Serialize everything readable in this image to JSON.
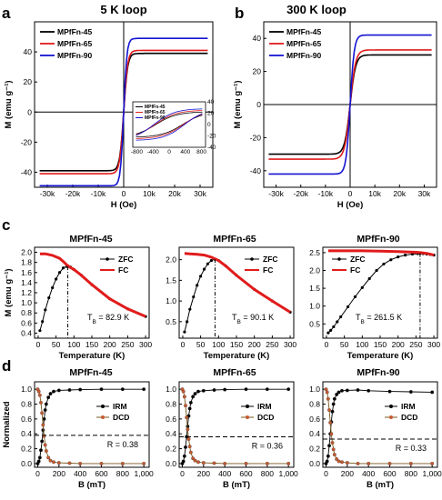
{
  "panel_letters": [
    "a",
    "b",
    "c",
    "d"
  ],
  "chart_data": [
    {
      "id": "a",
      "type": "line",
      "title": "5 K loop",
      "xlabel": "H (Oe)",
      "ylabel": "M (emu g⁻¹)",
      "xlim": [
        -35000,
        35000
      ],
      "ylim": [
        -50,
        60
      ],
      "xticks": [
        -30000,
        -20000,
        -10000,
        0,
        10000,
        20000,
        30000
      ],
      "xtick_labels": [
        "-30k",
        "-20k",
        "-10k",
        "0",
        "10k",
        "20k",
        "30k"
      ],
      "yticks": [
        -40,
        -20,
        0,
        20,
        40
      ],
      "ytick_labels": [
        "-40",
        "-20",
        "0",
        "20",
        "40"
      ],
      "legend_position": "top-left",
      "series": [
        {
          "name": "MPfFn-45",
          "color": "#000000",
          "Ms": 39,
          "k": 1600
        },
        {
          "name": "MPfFn-65",
          "color": "#e11b1b",
          "Ms": 41,
          "k": 1600
        },
        {
          "name": "MPfFn-90",
          "color": "#1414d2",
          "Ms": 49,
          "k": 1300
        }
      ],
      "inset": {
        "xlim": [
          -900,
          900
        ],
        "ylim": [
          -40,
          40
        ],
        "xticks": [
          -800,
          -400,
          0,
          400,
          800
        ],
        "xtick_labels": [
          "-800",
          "-400",
          "0",
          "400",
          "800"
        ],
        "yticks": [
          -40,
          -20,
          0,
          20,
          40
        ],
        "ytick_labels": [
          "-40",
          "-20",
          "0",
          "20",
          "40"
        ],
        "legend_position": "top-left",
        "coercivity_oe": [
          330,
          350,
          380
        ]
      }
    },
    {
      "id": "b",
      "type": "line",
      "title": "300 K loop",
      "xlabel": "H (Oe)",
      "ylabel": "M (emu g⁻¹)",
      "xlim": [
        -35000,
        35000
      ],
      "ylim": [
        -50,
        50
      ],
      "xticks": [
        -30000,
        -20000,
        -10000,
        0,
        10000,
        20000,
        30000
      ],
      "xtick_labels": [
        "-30k",
        "-20k",
        "-10k",
        "0",
        "10k",
        "20k",
        "30k"
      ],
      "yticks": [
        -40,
        -20,
        0,
        20,
        40
      ],
      "ytick_labels": [
        "-40",
        "-20",
        "0",
        "20",
        "40"
      ],
      "legend_position": "top-left",
      "series": [
        {
          "name": "MPfFn-45",
          "color": "#000000",
          "Ms": 30,
          "k": 2300
        },
        {
          "name": "MPfFn-65",
          "color": "#e11b1b",
          "Ms": 33,
          "k": 2300
        },
        {
          "name": "MPfFn-90",
          "color": "#1414d2",
          "Ms": 42,
          "k": 1700
        }
      ]
    },
    {
      "id": "c1",
      "type": "line",
      "title": "MPfFn-45",
      "xlabel": "Temperature (K)",
      "ylabel": "M (emu g⁻¹)",
      "xlim": [
        -10,
        310
      ],
      "ylim": [
        0.3,
        2.1
      ],
      "xticks": [
        0,
        50,
        100,
        150,
        200,
        250,
        300
      ],
      "yticks": [
        0.4,
        0.6,
        0.8,
        1.0,
        1.2,
        1.4,
        1.6,
        1.8,
        2.0
      ],
      "ytick_labels": [
        "0.4",
        "0.6",
        "0.8",
        "1.0",
        "1.2",
        "1.4",
        "1.6",
        "1.8",
        "2.0"
      ],
      "legend_position": "top-right",
      "annotation": "T",
      "annotation_sub": "B",
      "annotation_rest": " = 82.9 K",
      "tb": 82.9,
      "series": [
        {
          "name": "ZFC",
          "color": "#000000",
          "marker": true,
          "x": [
            5,
            12,
            20,
            30,
            40,
            50,
            60,
            70,
            80,
            90,
            100,
            120,
            150,
            200,
            250,
            300
          ],
          "y": [
            0.45,
            0.63,
            0.86,
            1.1,
            1.3,
            1.47,
            1.6,
            1.69,
            1.72,
            1.71,
            1.66,
            1.55,
            1.36,
            1.08,
            0.88,
            0.73
          ]
        },
        {
          "name": "FC",
          "color": "#e11b1b",
          "marker": false,
          "x": [
            5,
            20,
            40,
            60,
            70,
            80,
            90,
            100,
            120,
            150,
            200,
            250,
            300
          ],
          "y": [
            1.97,
            1.97,
            1.94,
            1.88,
            1.82,
            1.75,
            1.7,
            1.66,
            1.55,
            1.36,
            1.08,
            0.88,
            0.73
          ]
        }
      ]
    },
    {
      "id": "c2",
      "type": "line",
      "title": "MPfFn-65",
      "xlabel": "Temperature (K)",
      "ylabel": "",
      "xlim": [
        -10,
        310
      ],
      "ylim": [
        0.1,
        2.3
      ],
      "xticks": [
        0,
        50,
        100,
        150,
        200,
        250,
        300
      ],
      "yticks": [
        0.5,
        1.0,
        1.5,
        2.0
      ],
      "ytick_labels": [
        "0.5",
        "1.0",
        "1.5",
        "2.0"
      ],
      "legend_position": "top-right",
      "annotation": "T",
      "annotation_sub": "B",
      "annotation_rest": " = 90.1 K",
      "tb": 90.1,
      "series": [
        {
          "name": "ZFC",
          "color": "#000000",
          "marker": true,
          "x": [
            5,
            12,
            20,
            30,
            40,
            50,
            60,
            70,
            80,
            90,
            100,
            120,
            150,
            200,
            250,
            300
          ],
          "y": [
            0.25,
            0.5,
            0.8,
            1.1,
            1.38,
            1.6,
            1.77,
            1.9,
            1.98,
            2.01,
            1.98,
            1.85,
            1.62,
            1.28,
            1.0,
            0.73
          ]
        },
        {
          "name": "FC",
          "color": "#e11b1b",
          "marker": false,
          "x": [
            5,
            20,
            40,
            60,
            80,
            90,
            100,
            120,
            150,
            200,
            250,
            300
          ],
          "y": [
            2.15,
            2.14,
            2.13,
            2.11,
            2.06,
            2.02,
            1.98,
            1.85,
            1.62,
            1.28,
            1.0,
            0.73
          ]
        }
      ]
    },
    {
      "id": "c3",
      "type": "line",
      "title": "MPfFn-90",
      "xlabel": "Temperature (K)",
      "ylabel": "",
      "xlim": [
        -10,
        310
      ],
      "ylim": [
        0.1,
        2.65
      ],
      "xticks": [
        0,
        50,
        100,
        150,
        200,
        250,
        300
      ],
      "yticks": [
        0.5,
        1.0,
        1.5,
        2.0,
        2.5
      ],
      "ytick_labels": [
        "0.5",
        "1.0",
        "1.5",
        "2.0",
        "2.5"
      ],
      "legend_position": "top-left",
      "annotation": "T",
      "annotation_sub": "B",
      "annotation_rest": " = 261.5 K",
      "tb": 261.5,
      "series": [
        {
          "name": "ZFC",
          "color": "#000000",
          "marker": true,
          "x": [
            5,
            12,
            20,
            30,
            40,
            60,
            80,
            100,
            120,
            140,
            160,
            180,
            200,
            220,
            240,
            255,
            262,
            270,
            280,
            290,
            300
          ],
          "y": [
            0.25,
            0.32,
            0.42,
            0.56,
            0.7,
            0.98,
            1.26,
            1.52,
            1.77,
            2.0,
            2.18,
            2.3,
            2.38,
            2.43,
            2.46,
            2.47,
            2.48,
            2.47,
            2.46,
            2.45,
            2.43
          ]
        },
        {
          "name": "FC",
          "color": "#e11b1b",
          "marker": false,
          "x": [
            5,
            50,
            100,
            150,
            200,
            250,
            262,
            280,
            300
          ],
          "y": [
            2.55,
            2.55,
            2.55,
            2.54,
            2.53,
            2.51,
            2.5,
            2.48,
            2.43
          ]
        }
      ]
    },
    {
      "id": "d1",
      "type": "line",
      "title": "MPfFn-45",
      "xlabel": "B (mT)",
      "ylabel": "Normalized",
      "xlim": [
        -30,
        1050
      ],
      "ylim": [
        -0.05,
        1.1
      ],
      "xticks": [
        0,
        200,
        400,
        600,
        800,
        1000
      ],
      "xtick_labels": [
        "0",
        "200",
        "400",
        "600",
        "800",
        "1,000"
      ],
      "yticks": [
        0.0,
        0.2,
        0.4,
        0.6,
        0.8,
        1.0
      ],
      "ytick_labels": [
        "0.0",
        "0.2",
        "0.4",
        "0.6",
        "0.8",
        "1.0"
      ],
      "legend_position": "right",
      "r_label": "R = 0.38",
      "r_value": 0.38,
      "series": [
        {
          "name": "IRM",
          "color": "#000000",
          "marker_color": "#000000",
          "x": [
            0,
            10,
            20,
            30,
            40,
            50,
            60,
            70,
            80,
            100,
            120,
            150,
            200,
            300,
            400,
            600,
            800,
            1000
          ],
          "y": [
            0.0,
            0.03,
            0.08,
            0.18,
            0.3,
            0.45,
            0.6,
            0.72,
            0.8,
            0.89,
            0.94,
            0.97,
            0.985,
            0.99,
            0.995,
            1.0,
            1.0,
            1.0
          ]
        },
        {
          "name": "DCD",
          "color": "#7a5a1c",
          "marker_color": "#c85a30",
          "x": [
            0,
            10,
            20,
            30,
            40,
            50,
            60,
            70,
            80,
            100,
            120,
            150,
            200,
            300,
            400,
            600,
            800,
            1000
          ],
          "y": [
            1.0,
            0.97,
            0.92,
            0.82,
            0.68,
            0.52,
            0.37,
            0.25,
            0.17,
            0.08,
            0.04,
            0.02,
            0.01,
            0.005,
            0.0,
            0.0,
            0.0,
            0.0
          ]
        }
      ]
    },
    {
      "id": "d2",
      "type": "line",
      "title": "MPfFn-65",
      "xlabel": "B (mT)",
      "ylabel": "",
      "xlim": [
        -30,
        1050
      ],
      "ylim": [
        -0.05,
        1.1
      ],
      "xticks": [
        0,
        200,
        400,
        600,
        800,
        1000
      ],
      "xtick_labels": [
        "0",
        "200",
        "400",
        "600",
        "800",
        "1,000"
      ],
      "yticks": [
        0.0,
        0.2,
        0.4,
        0.6,
        0.8,
        1.0
      ],
      "ytick_labels": [
        "0.0",
        "0.2",
        "0.4",
        "0.6",
        "0.8",
        "1.0"
      ],
      "legend_position": "right",
      "r_label": "R = 0.36",
      "r_value": 0.36,
      "series": [
        {
          "name": "IRM",
          "color": "#000000",
          "marker_color": "#000000",
          "x": [
            0,
            10,
            20,
            30,
            40,
            50,
            60,
            70,
            80,
            100,
            120,
            150,
            200,
            300,
            400,
            600,
            800,
            1000
          ],
          "y": [
            0.0,
            0.03,
            0.1,
            0.22,
            0.36,
            0.5,
            0.64,
            0.74,
            0.82,
            0.9,
            0.94,
            0.97,
            0.98,
            0.99,
            0.995,
            1.0,
            1.0,
            1.0
          ]
        },
        {
          "name": "DCD",
          "color": "#7a5a1c",
          "marker_color": "#c85a30",
          "x": [
            0,
            10,
            20,
            30,
            40,
            50,
            60,
            70,
            80,
            100,
            120,
            150,
            200,
            300,
            400,
            600,
            800,
            1000
          ],
          "y": [
            1.0,
            0.97,
            0.9,
            0.78,
            0.62,
            0.46,
            0.33,
            0.23,
            0.15,
            0.07,
            0.04,
            0.02,
            0.01,
            0.005,
            0.0,
            0.0,
            0.0,
            0.0
          ]
        }
      ]
    },
    {
      "id": "d3",
      "type": "line",
      "title": "MPfFn-90",
      "xlabel": "B (mT)",
      "ylabel": "",
      "xlim": [
        -30,
        1050
      ],
      "ylim": [
        -0.05,
        1.1
      ],
      "xticks": [
        0,
        200,
        400,
        600,
        800,
        1000
      ],
      "xtick_labels": [
        "0",
        "200",
        "400",
        "600",
        "800",
        "1,000"
      ],
      "yticks": [
        0.0,
        0.2,
        0.4,
        0.6,
        0.8,
        1.0
      ],
      "ytick_labels": [
        "0.0",
        "0.2",
        "0.4",
        "0.6",
        "0.8",
        "1.0"
      ],
      "legend_position": "right",
      "r_label": "R = 0.33",
      "r_value": 0.33,
      "series": [
        {
          "name": "IRM",
          "color": "#000000",
          "marker_color": "#000000",
          "x": [
            0,
            10,
            20,
            30,
            40,
            50,
            60,
            70,
            80,
            100,
            120,
            150,
            200,
            300,
            400,
            600,
            800,
            1000
          ],
          "y": [
            0.0,
            0.03,
            0.1,
            0.24,
            0.4,
            0.56,
            0.7,
            0.8,
            0.87,
            0.93,
            0.96,
            0.98,
            0.985,
            0.99,
            0.98,
            0.97,
            0.965,
            0.96
          ]
        },
        {
          "name": "DCD",
          "color": "#7a5a1c",
          "marker_color": "#c85a30",
          "x": [
            0,
            10,
            20,
            30,
            40,
            50,
            60,
            70,
            80,
            100,
            120,
            150,
            200,
            300,
            400,
            600,
            800,
            1000
          ],
          "y": [
            1.0,
            0.96,
            0.87,
            0.72,
            0.55,
            0.4,
            0.28,
            0.19,
            0.12,
            0.06,
            0.03,
            0.02,
            0.01,
            0.0,
            0.0,
            0.0,
            0.0,
            0.0
          ]
        }
      ]
    }
  ]
}
